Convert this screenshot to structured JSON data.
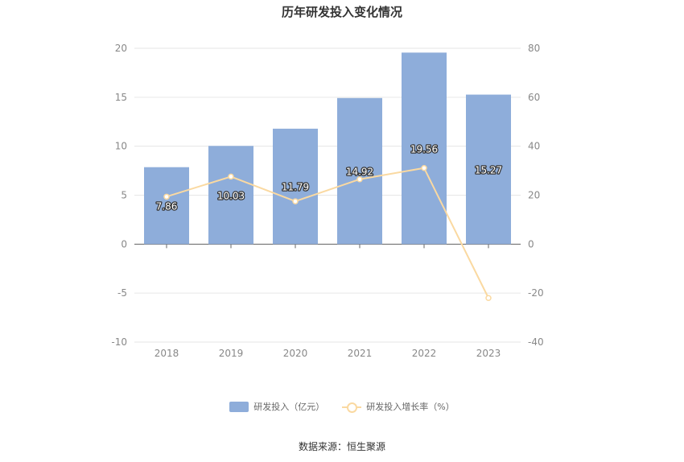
{
  "chart_data": {
    "type": "bar",
    "title": "历年研发投入变化情况",
    "categories": [
      "2018",
      "2019",
      "2020",
      "2021",
      "2022",
      "2023"
    ],
    "series": [
      {
        "name": "研发投入（亿元）",
        "type": "bar",
        "axis": "left",
        "color": "#8EADDA",
        "values": [
          7.86,
          10.03,
          11.79,
          14.92,
          19.56,
          15.27
        ],
        "labels": [
          "7.86",
          "10.03",
          "11.79",
          "14.92",
          "19.56",
          "15.27"
        ]
      },
      {
        "name": "研发投入增长率（%）",
        "type": "line",
        "axis": "right",
        "color": "#FAD9A1",
        "values": [
          19.4,
          27.6,
          17.5,
          26.5,
          31.1,
          -22.0
        ]
      }
    ],
    "y_left": {
      "min": -10,
      "max": 20,
      "ticks": [
        "-10",
        "-5",
        "0",
        "5",
        "10",
        "15",
        "20"
      ]
    },
    "y_right": {
      "min": -40,
      "max": 80,
      "ticks": [
        "-40",
        "-20",
        "0",
        "20",
        "40",
        "60",
        "80"
      ]
    },
    "grid": true,
    "legend_position": "bottom"
  },
  "source": "数据来源：恒生聚源"
}
